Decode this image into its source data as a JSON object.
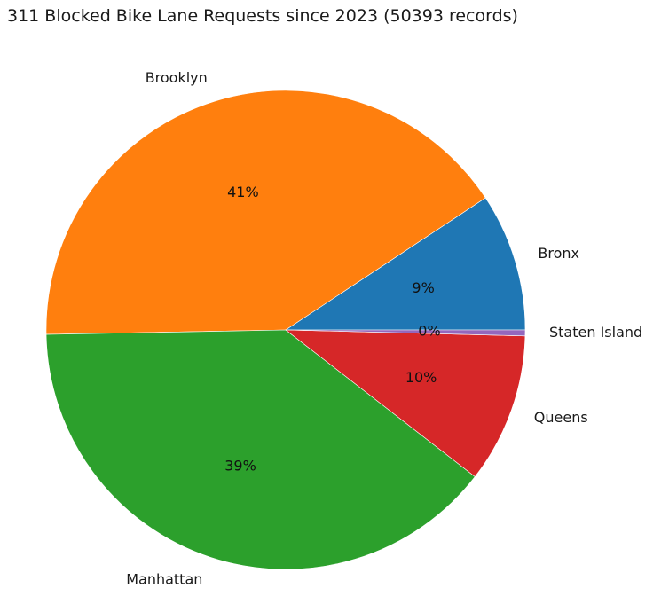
{
  "chart_data": {
    "type": "pie",
    "title": "311 Blocked Bike Lane Requests since 2023 (50393 records)",
    "slices": [
      {
        "label": "Bronx",
        "value": 9.3,
        "pct_label": "9%",
        "color": "#1f77b4"
      },
      {
        "label": "Brooklyn",
        "value": 41.0,
        "pct_label": "41%",
        "color": "#ff7f0e"
      },
      {
        "label": "Manhattan",
        "value": 39.2,
        "pct_label": "39%",
        "color": "#2ca02c"
      },
      {
        "label": "Queens",
        "value": 10.1,
        "pct_label": "10%",
        "color": "#d62728"
      },
      {
        "label": "Staten Island",
        "value": 0.4,
        "pct_label": "0%",
        "color": "#9467bd"
      }
    ],
    "start_angle_deg": 0,
    "direction": "counterclockwise",
    "legend": "none"
  }
}
